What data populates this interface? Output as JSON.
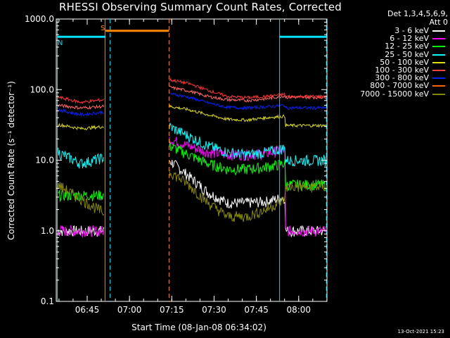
{
  "chart_data": {
    "type": "line",
    "title": "RHESSI Observing Summary Count Rates, Corrected",
    "xlabel": "Start Time (08-Jan-08 06:34:02)",
    "ylabel": "Corrected Count Rate (s⁻¹ detector⁻¹)",
    "ylog": true,
    "ylim": [
      0.1,
      1000
    ],
    "xlim_minutes": [
      0,
      96
    ],
    "y_tick_labels": [
      "1000.0",
      "100.0",
      "10.0",
      "1.0",
      "0.1"
    ],
    "y_tick_values": [
      1000,
      100,
      10,
      1,
      0.1
    ],
    "x_tick_labels": [
      "06:45",
      "07:00",
      "07:15",
      "07:30",
      "07:45",
      "08:00"
    ],
    "x_tick_minutes": [
      10.97,
      25.97,
      40.97,
      55.97,
      70.97,
      85.97
    ],
    "legend_header": [
      "Det 1,3,4,5,6,9,",
      "Att 0"
    ],
    "flags": [
      {
        "label": "S",
        "color": "#ff8800",
        "start": 17.5,
        "end": 40.0,
        "level": 680
      },
      {
        "label": "N",
        "color": "#00e0ff",
        "start": 0.4,
        "end": 17.5,
        "level": 560
      },
      {
        "label": "",
        "color": "#00e0ff",
        "start": 79.2,
        "end": 95.8,
        "level": 560
      }
    ],
    "vlines": [
      {
        "color": "#ff8800",
        "x": 17.3,
        "style": "solid"
      },
      {
        "color": "#ff8800",
        "x": 40.0,
        "style": "dash"
      },
      {
        "color": "#00e0ff",
        "x": 0.4,
        "style": "solid"
      },
      {
        "color": "#00e0ff",
        "x": 19.1,
        "style": "dash"
      },
      {
        "color": "#00e0ff",
        "x": 79.2,
        "style": "solid"
      },
      {
        "color": "#00e0ff",
        "x": 95.8,
        "style": "dash"
      }
    ],
    "series": [
      {
        "name": "3 - 6 keV",
        "color": "#ffffff",
        "seg1": [
          1.0,
          1.0,
          1.0
        ],
        "seg2": [
          10,
          6,
          3.5,
          2.5,
          2.5,
          2.6,
          3.0
        ],
        "seg2_end": 1.0
      },
      {
        "name": "6 - 12 keV",
        "color": "#ff00ff",
        "seg1": [
          1.0,
          1.0,
          1.0
        ],
        "seg2": [
          20,
          16,
          13,
          12,
          12,
          12.5,
          14
        ],
        "seg2_end": 1.0
      },
      {
        "name": "12 - 25 keV",
        "color": "#00ff00",
        "seg1": [
          3.2,
          3.2,
          3.2
        ],
        "seg2": [
          16,
          12,
          9,
          7.5,
          7.5,
          8,
          9
        ],
        "seg2_end": 4.5
      },
      {
        "name": "25 - 50 keV",
        "color": "#00ffff",
        "seg1": [
          13,
          9,
          11
        ],
        "seg2": [
          30,
          22,
          16,
          13,
          12,
          13,
          15
        ],
        "seg2_end": 10
      },
      {
        "name": "50 - 100 keV",
        "color": "#dddd00",
        "seg1": [
          32,
          28,
          30
        ],
        "seg2": [
          58,
          52,
          44,
          38,
          37,
          40,
          42
        ],
        "seg2_end": 31
      },
      {
        "name": "100 - 300 keV",
        "color": "#ff6666",
        "seg1": [
          60,
          55,
          58
        ],
        "seg2": [
          108,
          96,
          80,
          72,
          70,
          74,
          82
        ],
        "seg2_end": 78
      },
      {
        "name": "300 - 800 keV",
        "color": "#0022ff",
        "seg1": [
          52,
          44,
          48
        ],
        "seg2": [
          88,
          78,
          65,
          56,
          55,
          57,
          60
        ],
        "seg2_end": 55
      },
      {
        "name": "800 - 7000 keV",
        "color": "#ff3333",
        "seg1": [
          78,
          66,
          72
        ],
        "seg2": [
          138,
          122,
          98,
          80,
          77,
          80,
          86
        ],
        "seg2_end": 80
      },
      {
        "name": "7000 - 15000 keV",
        "color": "#888800",
        "seg1": [
          4.5,
          2.8,
          1.8
        ],
        "seg2": [
          7,
          4.5,
          2.5,
          1.6,
          1.6,
          2,
          2.8
        ],
        "seg2_end": 4.2
      }
    ]
  },
  "legend": {
    "header_line1": "Det 1,3,4,5,6,9,",
    "header_line2": "Att 0",
    "items": [
      {
        "label": "3 - 6 keV",
        "color": "#ffffff"
      },
      {
        "label": "6 - 12 keV",
        "color": "#ff00ff"
      },
      {
        "label": "12 - 25 keV",
        "color": "#00ff00"
      },
      {
        "label": "25 - 50 keV",
        "color": "#00ffff"
      },
      {
        "label": "50 - 100 keV",
        "color": "#dddd00"
      },
      {
        "label": "100 - 300 keV",
        "color": "#ff4444"
      },
      {
        "label": "300 - 800 keV",
        "color": "#0022ff"
      },
      {
        "label": "800 - 7000 keV",
        "color": "#ff6600"
      },
      {
        "label": "7000 - 15000 keV",
        "color": "#888800"
      }
    ]
  },
  "timestamp": "13-Oct-2021 15:23"
}
